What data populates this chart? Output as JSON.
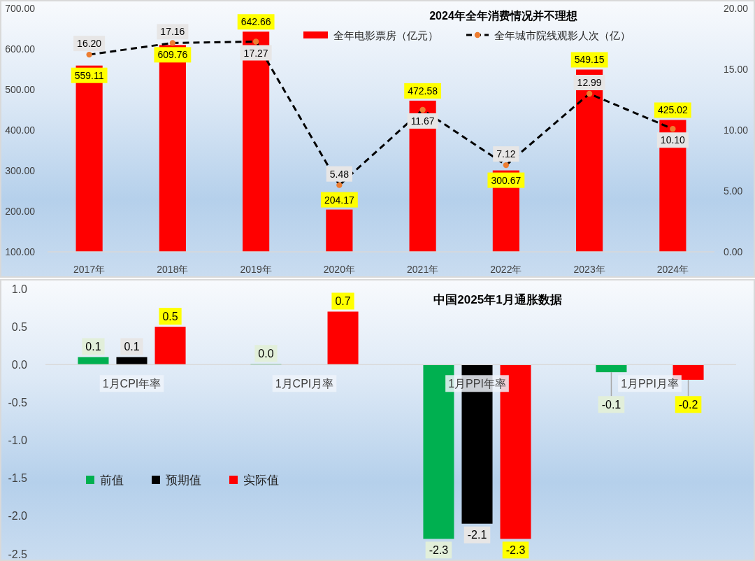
{
  "chart_data": [
    {
      "type": "bar",
      "title": "2024年全年消费情况并不理想",
      "categories": [
        "2017年",
        "2018年",
        "2019年",
        "2020年",
        "2021年",
        "2022年",
        "2023年",
        "2024年"
      ],
      "series": [
        {
          "name": "全年电影票房（亿元）",
          "type": "bar",
          "color": "#ff0000",
          "values": [
            559.11,
            609.76,
            642.66,
            204.17,
            472.58,
            300.67,
            549.15,
            425.02
          ],
          "value_labels": [
            "559.11",
            "609.76",
            "642.66",
            "204.17",
            "472.58",
            "300.67",
            "549.15",
            "425.02"
          ]
        },
        {
          "name": "全年城市院线观影人次（亿）",
          "type": "line",
          "axis": "y2",
          "color": "#000000",
          "values": [
            16.2,
            17.16,
            17.27,
            5.48,
            11.67,
            7.12,
            12.99,
            10.1
          ],
          "value_labels": [
            "16.20",
            "17.16",
            "17.27",
            "5.48",
            "11.67",
            "7.12",
            "12.99",
            "10.10"
          ]
        }
      ],
      "ylim": [
        100,
        700
      ],
      "yticks": [
        {
          "value": 100,
          "label": "100.00"
        },
        {
          "value": 200,
          "label": "200.00"
        },
        {
          "value": 300,
          "label": "300.00"
        },
        {
          "value": 400,
          "label": "400.00"
        },
        {
          "value": 500,
          "label": "500.00"
        },
        {
          "value": 600,
          "label": "600.00"
        },
        {
          "value": 700,
          "label": "700.00"
        }
      ],
      "y2lim": [
        0,
        20
      ],
      "y2ticks": [
        {
          "value": 0,
          "label": "0.00"
        },
        {
          "value": 5,
          "label": "5.00"
        },
        {
          "value": 10,
          "label": "10.00"
        },
        {
          "value": 15,
          "label": "15.00"
        },
        {
          "value": 20,
          "label": "20.00"
        }
      ],
      "legend": "top",
      "marker": "circle",
      "line_style": "dashed"
    },
    {
      "type": "bar",
      "title": "中国2025年1月通胀数据",
      "categories": [
        "1月CPI年率",
        "1月CPI月率",
        "1月PPI年率",
        "1月PPI月率"
      ],
      "series": [
        {
          "name": "前值",
          "color": "#00b050",
          "values": [
            0.1,
            0.0,
            -2.3,
            -0.1
          ],
          "value_labels": [
            "0.1",
            "0.0",
            "-2.3",
            "-0.1"
          ]
        },
        {
          "name": "预期值",
          "color": "#000000",
          "values": [
            0.1,
            null,
            -2.1,
            null
          ],
          "value_labels": [
            "0.1",
            null,
            "-2.1",
            null
          ]
        },
        {
          "name": "实际值",
          "color": "#ff0000",
          "values": [
            0.5,
            0.7,
            -2.3,
            -0.2
          ],
          "value_labels": [
            "0.5",
            "0.7",
            "-2.3",
            "-0.2"
          ]
        }
      ],
      "ylim": [
        -2.5,
        1.0
      ],
      "yticks": [
        -2.5,
        {
          "value": -2,
          "label": "-2.0"
        },
        -1.5,
        {
          "value": -1,
          "label": "-1.0"
        },
        -0.5,
        {
          "value": 0,
          "label": "0.0"
        },
        0.5,
        {
          "value": 1,
          "label": "1.0"
        }
      ],
      "legend": "bottom left"
    }
  ]
}
